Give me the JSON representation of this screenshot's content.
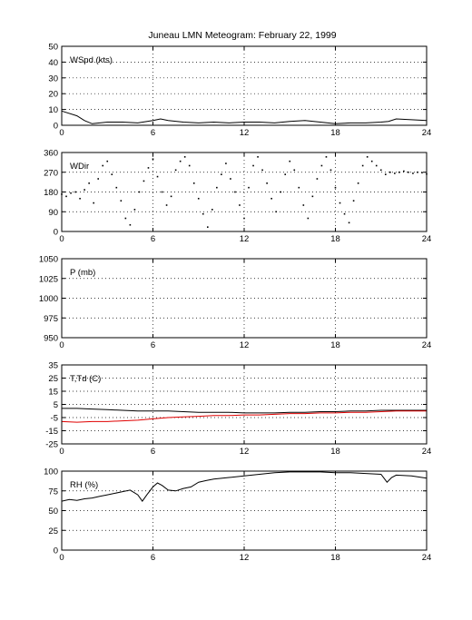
{
  "title": "Juneau LMN Meteogram:  February 22, 1999",
  "colors": {
    "background": "#ffffff",
    "axes": "#000000",
    "grid": "#000000",
    "dewpoint": "#e00000"
  },
  "chart_data": [
    {
      "type": "line",
      "label": "WSpd (kts)",
      "xlim": [
        0,
        24
      ],
      "ylim": [
        0,
        50
      ],
      "xticks": [
        0,
        6,
        12,
        18,
        24
      ],
      "yticks": [
        0,
        10,
        20,
        30,
        40,
        50
      ],
      "grid": true,
      "series": [
        {
          "color": "#000000",
          "x": [
            0,
            1,
            1.5,
            2,
            3,
            4,
            5,
            6,
            6.5,
            7,
            8,
            9,
            10,
            11,
            12,
            13,
            14,
            15,
            16,
            17,
            18,
            19,
            20,
            21,
            21.5,
            22,
            23,
            24
          ],
          "y": [
            9,
            6,
            3,
            1,
            2,
            2,
            1.5,
            3,
            4,
            3,
            2,
            1.5,
            2,
            1.5,
            2,
            2,
            1.5,
            2.5,
            3,
            2,
            1,
            1.5,
            1.5,
            2,
            2.5,
            4,
            3.5,
            3
          ]
        }
      ]
    },
    {
      "type": "scatter",
      "label": "WDir",
      "xlim": [
        0,
        24
      ],
      "ylim": [
        0,
        360
      ],
      "xticks": [
        0,
        6,
        12,
        18,
        24
      ],
      "yticks": [
        0,
        90,
        180,
        270,
        360
      ],
      "grid": true,
      "series": [
        {
          "color": "#000000",
          "x": [
            0,
            0.3,
            0.6,
            0.9,
            1.2,
            1.5,
            1.8,
            2.1,
            2.4,
            2.7,
            3.0,
            3.3,
            3.6,
            3.9,
            4.2,
            4.5,
            4.8,
            5.1,
            5.4,
            5.7,
            6.0,
            6.3,
            6.6,
            6.9,
            7.2,
            7.5,
            7.8,
            8.1,
            8.4,
            8.7,
            9.0,
            9.3,
            9.6,
            9.9,
            10.2,
            10.5,
            10.8,
            11.1,
            11.4,
            11.7,
            12.0,
            12.3,
            12.6,
            12.9,
            13.2,
            13.5,
            13.8,
            14.1,
            14.4,
            14.7,
            15.0,
            15.3,
            15.6,
            15.9,
            16.2,
            16.5,
            16.8,
            17.1,
            17.4,
            17.7,
            18.0,
            18.3,
            18.6,
            18.9,
            19.2,
            19.5,
            19.8,
            20.1,
            20.4,
            20.7,
            21.0,
            21.3,
            21.6,
            21.9,
            22.2,
            22.5,
            22.8,
            23.1,
            23.4,
            23.7,
            24.0
          ],
          "y": [
            170,
            160,
            175,
            180,
            150,
            190,
            220,
            130,
            240,
            300,
            320,
            260,
            200,
            140,
            60,
            30,
            100,
            180,
            230,
            290,
            330,
            250,
            180,
            120,
            160,
            280,
            320,
            340,
            300,
            220,
            150,
            80,
            20,
            100,
            200,
            260,
            310,
            240,
            180,
            120,
            60,
            200,
            300,
            340,
            280,
            220,
            150,
            90,
            180,
            260,
            320,
            280,
            200,
            120,
            60,
            160,
            240,
            300,
            340,
            280,
            200,
            130,
            80,
            40,
            140,
            220,
            300,
            340,
            320,
            300,
            280,
            260,
            270,
            265,
            270,
            275,
            270,
            265,
            270,
            268,
            262
          ]
        }
      ]
    },
    {
      "type": "line",
      "label": "P (mb)",
      "xlim": [
        0,
        24
      ],
      "ylim": [
        950,
        1050
      ],
      "xticks": [
        0,
        6,
        12,
        18,
        24
      ],
      "yticks": [
        950,
        975,
        1000,
        1025,
        1050
      ],
      "grid": true,
      "series": []
    },
    {
      "type": "line",
      "label": "T,Td (C)",
      "xlim": [
        0,
        24
      ],
      "ylim": [
        -25,
        35
      ],
      "xticks": [
        0,
        6,
        12,
        18,
        24
      ],
      "yticks": [
        -25,
        -15,
        -5,
        5,
        15,
        25,
        35
      ],
      "grid": true,
      "series": [
        {
          "color": "#000000",
          "x": [
            0,
            1,
            2,
            3,
            4,
            5,
            6,
            7,
            8,
            9,
            10,
            11,
            12,
            13,
            14,
            15,
            16,
            17,
            18,
            19,
            20,
            21,
            22,
            23,
            24
          ],
          "y": [
            2,
            2,
            1.5,
            1,
            0.5,
            0,
            0,
            0,
            -0.5,
            -1,
            -1,
            -1,
            -1.5,
            -1.5,
            -1.5,
            -1,
            -1,
            -0.5,
            -0.5,
            0,
            0,
            0.5,
            0.5,
            0.5,
            0.5
          ]
        },
        {
          "color": "#e00000",
          "x": [
            0,
            1,
            2,
            3,
            4,
            5,
            6,
            7,
            8,
            9,
            10,
            11,
            12,
            13,
            14,
            15,
            16,
            17,
            18,
            19,
            20,
            21,
            22,
            23,
            24
          ],
          "y": [
            -8,
            -8.5,
            -8,
            -8,
            -7.5,
            -7,
            -6,
            -5,
            -4.5,
            -4,
            -3.5,
            -3.5,
            -3,
            -3,
            -2.5,
            -2,
            -2,
            -1.5,
            -1.5,
            -1,
            -1,
            -0.5,
            0,
            0,
            0
          ]
        }
      ]
    },
    {
      "type": "line",
      "label": "RH (%)",
      "xlim": [
        0,
        24
      ],
      "ylim": [
        0,
        100
      ],
      "xticks": [
        0,
        6,
        12,
        18,
        24
      ],
      "yticks": [
        0,
        25,
        50,
        75,
        100
      ],
      "grid": true,
      "series": [
        {
          "color": "#000000",
          "x": [
            0,
            0.5,
            1,
            1.5,
            2,
            2.5,
            3,
            3.5,
            4,
            4.5,
            5,
            5.3,
            5.6,
            6,
            6.3,
            6.6,
            7,
            7.5,
            8,
            8.5,
            9,
            9.5,
            10,
            11,
            12,
            13,
            14,
            15,
            16,
            17,
            18,
            19,
            20,
            21,
            21.4,
            21.7,
            22,
            23,
            24
          ],
          "y": [
            62,
            64,
            63,
            65,
            66,
            68,
            70,
            72,
            74,
            76,
            70,
            62,
            70,
            80,
            85,
            82,
            76,
            75,
            78,
            80,
            86,
            88,
            90,
            92,
            94,
            96,
            98,
            99,
            99,
            99,
            98,
            98,
            97,
            96,
            86,
            92,
            95,
            94,
            91
          ]
        }
      ]
    }
  ]
}
